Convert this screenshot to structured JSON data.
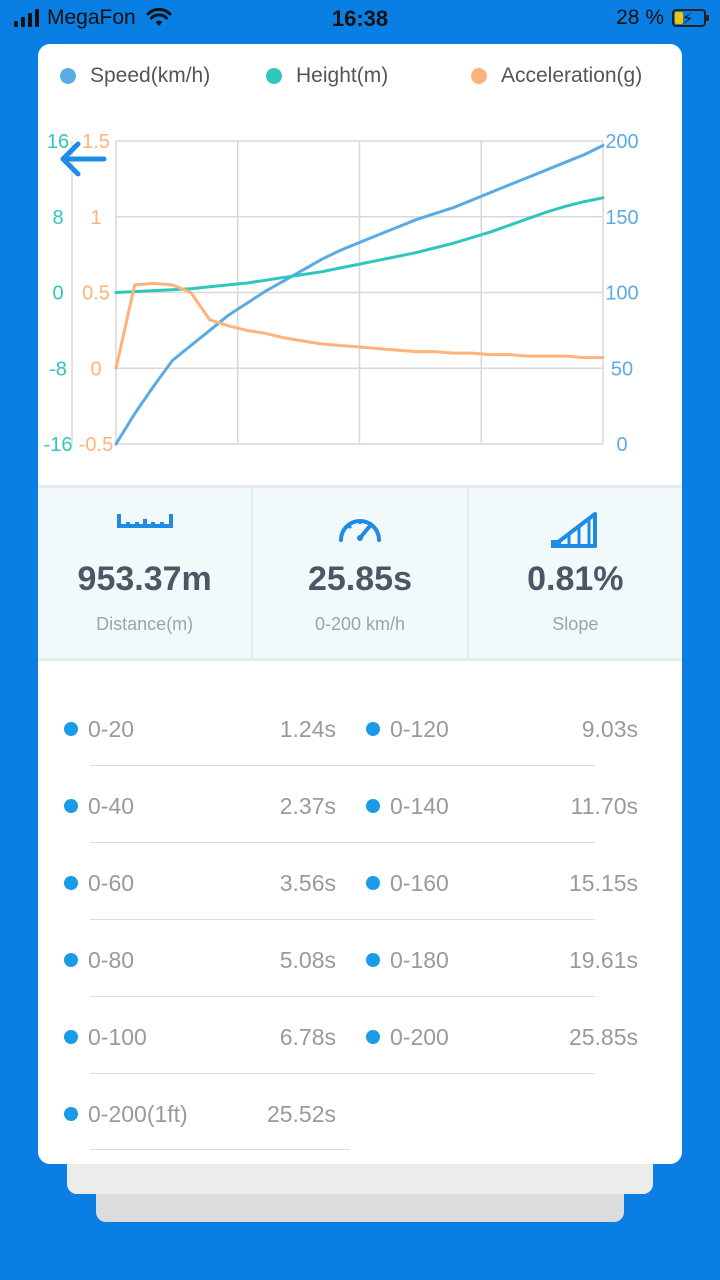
{
  "status_bar": {
    "carrier": "MegaFon",
    "time": "16:38",
    "battery": "28 %",
    "battery_level": 0.28
  },
  "legend": {
    "speed": "Speed(km/h)",
    "height": "Height(m)",
    "acceleration": "Acceleration(g)"
  },
  "colors": {
    "background": "#0a7fe3",
    "speed": "#5aaae4",
    "height": "#2fc6bb",
    "acceleration": "#ffb27a",
    "bullet": "#1a9be8"
  },
  "chart_data": {
    "type": "line",
    "x": [
      0,
      1,
      2,
      3,
      4,
      5,
      6,
      7,
      8,
      9,
      10,
      11,
      12,
      13,
      14,
      15,
      16,
      17,
      18,
      19,
      20,
      21,
      22,
      23,
      24,
      25,
      26
    ],
    "series": [
      {
        "name": "Speed(km/h)",
        "axis": "right",
        "values": [
          0,
          20,
          38,
          55,
          65,
          75,
          85,
          93,
          101,
          108,
          115,
          122,
          128,
          133,
          138,
          143,
          148,
          152,
          156,
          161,
          166,
          171,
          176,
          181,
          186,
          191,
          197
        ]
      },
      {
        "name": "Height(m)",
        "axis": "left-outer",
        "values": [
          0,
          0.1,
          0.2,
          0.3,
          0.4,
          0.6,
          0.8,
          1.0,
          1.3,
          1.6,
          1.9,
          2.2,
          2.6,
          3.0,
          3.4,
          3.8,
          4.2,
          4.7,
          5.2,
          5.8,
          6.4,
          7.1,
          7.8,
          8.5,
          9.1,
          9.6,
          10.0
        ]
      },
      {
        "name": "Acceleration(g)",
        "axis": "left-inner",
        "values": [
          0.0,
          0.55,
          0.56,
          0.55,
          0.5,
          0.32,
          0.28,
          0.25,
          0.23,
          0.2,
          0.18,
          0.16,
          0.15,
          0.14,
          0.13,
          0.12,
          0.11,
          0.11,
          0.1,
          0.1,
          0.09,
          0.09,
          0.08,
          0.08,
          0.08,
          0.07,
          0.07
        ]
      }
    ],
    "y_left_outer": {
      "ticks": [
        "16",
        "8",
        "0",
        "-8",
        "-16"
      ],
      "range": [
        -16,
        16
      ]
    },
    "y_left_inner": {
      "ticks": [
        "1.5",
        "1",
        "0.5",
        "0",
        "-0.5"
      ],
      "range": [
        -0.5,
        1.5
      ]
    },
    "y_right": {
      "ticks": [
        "200",
        "150",
        "100",
        "50",
        "0"
      ],
      "range": [
        0,
        200
      ]
    },
    "grid": true,
    "legend_position": "top"
  },
  "stats": {
    "distance": {
      "value": "953.37m",
      "label": "Distance(m)"
    },
    "accel_time": {
      "value": "25.85s",
      "label": "0-200 km/h"
    },
    "slope": {
      "value": "0.81%",
      "label": "Slope"
    }
  },
  "times": {
    "left": [
      {
        "name": "0-20",
        "time": "1.24s"
      },
      {
        "name": "0-40",
        "time": "2.37s"
      },
      {
        "name": "0-60",
        "time": "3.56s"
      },
      {
        "name": "0-80",
        "time": "5.08s"
      },
      {
        "name": "0-100",
        "time": "6.78s"
      },
      {
        "name": "0-200(1ft)",
        "time": "25.52s"
      }
    ],
    "right": [
      {
        "name": "0-120",
        "time": "9.03s"
      },
      {
        "name": "0-140",
        "time": "11.70s"
      },
      {
        "name": "0-160",
        "time": "15.15s"
      },
      {
        "name": "0-180",
        "time": "19.61s"
      },
      {
        "name": "0-200",
        "time": "25.85s"
      }
    ]
  }
}
